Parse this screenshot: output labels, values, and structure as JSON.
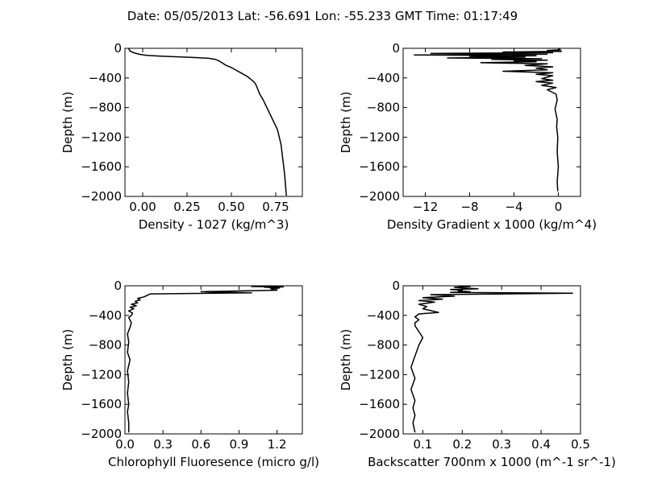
{
  "title": "Date: 05/05/2013  Lat:  -56.691 Lon:  -55.233  GMT Time: 01:17:49",
  "chart_data": [
    {
      "type": "line",
      "xlabel": "Density - 1027 (kg/m^3)",
      "ylabel": "Depth (m)",
      "xlim": [
        -0.1,
        0.9
      ],
      "ylim": [
        -2000,
        0
      ],
      "xticks": [
        0.0,
        0.25,
        0.5,
        0.75
      ],
      "xtick_labels": [
        "0.00",
        "0.25",
        "0.50",
        "0.75"
      ],
      "yticks": [
        0,
        -400,
        -800,
        -1200,
        -1600,
        -2000
      ],
      "ytick_labels": [
        "0",
        "−400",
        "−800",
        "−1200",
        "−1600",
        "−2000"
      ],
      "grid": false,
      "series": [
        {
          "x": [
            -0.08,
            -0.07,
            -0.05,
            -0.02,
            0.02,
            0.1,
            0.2,
            0.3,
            0.37,
            0.41,
            0.43,
            0.45,
            0.47,
            0.5,
            0.53,
            0.56,
            0.59,
            0.61,
            0.63,
            0.64,
            0.65,
            0.66,
            0.68,
            0.7,
            0.72,
            0.74,
            0.76,
            0.77,
            0.78,
            0.785,
            0.79,
            0.8,
            0.81
          ],
          "y": [
            0,
            -40,
            -60,
            -80,
            -95,
            -105,
            -115,
            -125,
            -135,
            -150,
            -170,
            -200,
            -230,
            -260,
            -300,
            -340,
            -380,
            -420,
            -460,
            -500,
            -560,
            -620,
            -700,
            -800,
            -900,
            -1000,
            -1100,
            -1200,
            -1300,
            -1400,
            -1500,
            -1700,
            -1990
          ]
        }
      ]
    },
    {
      "type": "line",
      "xlabel": "Density Gradient x 1000 (kg/m^4)",
      "ylabel": "Depth (m)",
      "xlim": [
        -14,
        2
      ],
      "ylim": [
        -2000,
        0
      ],
      "xticks": [
        -12,
        -8,
        -4,
        0
      ],
      "xtick_labels": [
        "−12",
        "−8",
        "−4",
        "0"
      ],
      "yticks": [
        0,
        -400,
        -800,
        -1200,
        -1600,
        -2000
      ],
      "ytick_labels": [
        "0",
        "−400",
        "−800",
        "−1200",
        "−1600",
        "−2000"
      ],
      "grid": false,
      "series": [
        {
          "x": [
            0,
            0.2,
            -1,
            0.3,
            -5,
            -0.5,
            -11.5,
            -1,
            -13,
            -2,
            -8,
            -3,
            -10,
            -1.5,
            -6,
            -1,
            -4,
            -2,
            -7,
            -1,
            -3,
            -0.5,
            -2,
            -1,
            -5,
            -0.5,
            -2,
            -0.5,
            -1,
            -1.5,
            -0.5,
            -2,
            -0.5,
            -1.5,
            -0.2,
            -1,
            -0.2,
            -0.1,
            -0.3,
            -0.1,
            -0.15,
            -0.05,
            -0.1,
            0,
            -0.1,
            -0.05
          ],
          "y": [
            -10,
            -20,
            -30,
            -40,
            -50,
            -60,
            -70,
            -80,
            -90,
            -100,
            -110,
            -120,
            -130,
            -140,
            -150,
            -160,
            -170,
            -180,
            -195,
            -210,
            -230,
            -250,
            -270,
            -290,
            -310,
            -330,
            -350,
            -370,
            -390,
            -410,
            -430,
            -450,
            -470,
            -500,
            -530,
            -560,
            -620,
            -700,
            -820,
            -960,
            -1060,
            -1200,
            -1400,
            -1600,
            -1800,
            -1930
          ]
        }
      ]
    },
    {
      "type": "line",
      "xlabel": "Chlorophyll Fluoresence (micro g/l)",
      "ylabel": "Depth (m)",
      "xlim": [
        0,
        1.4
      ],
      "ylim": [
        -2000,
        0
      ],
      "xticks": [
        0.0,
        0.3,
        0.6,
        0.9,
        1.2
      ],
      "xtick_labels": [
        "0.0",
        "0.3",
        "0.6",
        "0.9",
        "1.2"
      ],
      "yticks": [
        0,
        -400,
        -800,
        -1200,
        -1600,
        -2000
      ],
      "ytick_labels": [
        "0",
        "−400",
        "−800",
        "−1200",
        "−1600",
        "−2000"
      ],
      "grid": false,
      "series": [
        {
          "x": [
            1.05,
            1.2,
            1.0,
            1.25,
            1.1,
            1.22,
            1.15,
            1.2,
            0.6,
            1.0,
            0.2,
            0.15,
            0.1,
            0.12,
            0.08,
            0.1,
            0.05,
            0.09,
            0.04,
            0.07,
            0.03,
            0.06,
            0.05,
            0.03,
            0.05,
            0.04,
            0.02,
            0.03,
            0.02,
            0.04,
            0.02,
            0.03,
            0.02,
            0.03,
            0.02,
            0.03,
            0.03
          ],
          "y": [
            0,
            -5,
            -10,
            -15,
            -20,
            -30,
            -40,
            -60,
            -80,
            -95,
            -110,
            -150,
            -170,
            -190,
            -210,
            -230,
            -250,
            -270,
            -290,
            -310,
            -340,
            -370,
            -400,
            -430,
            -500,
            -560,
            -650,
            -760,
            -900,
            -1000,
            -1150,
            -1300,
            -1450,
            -1600,
            -1700,
            -1850,
            -1980
          ]
        }
      ]
    },
    {
      "type": "line",
      "xlabel": "Backscatter 700nm x 1000 (m^-1 sr^-1)",
      "ylabel": "Depth (m)",
      "xlim": [
        0.05,
        0.5
      ],
      "ylim": [
        -2000,
        0
      ],
      "xticks": [
        0.1,
        0.2,
        0.3,
        0.4,
        0.5
      ],
      "xtick_labels": [
        "0.1",
        "0.2",
        "0.3",
        "0.4",
        "0.5"
      ],
      "yticks": [
        0,
        -400,
        -800,
        -1200,
        -1600,
        -2000
      ],
      "ytick_labels": [
        "0",
        "−400",
        "−800",
        "−1200",
        "−1600",
        "−2000"
      ],
      "grid": false,
      "series": [
        {
          "x": [
            0.19,
            0.22,
            0.18,
            0.2,
            0.24,
            0.17,
            0.2,
            0.19,
            0.22,
            0.17,
            0.48,
            0.12,
            0.18,
            0.1,
            0.15,
            0.09,
            0.13,
            0.09,
            0.11,
            0.1,
            0.14,
            0.09,
            0.08,
            0.09,
            0.08,
            0.08,
            0.09,
            0.1,
            0.09,
            0.08,
            0.07,
            0.08,
            0.07,
            0.08,
            0.075,
            0.08,
            0.075,
            0.08
          ],
          "y": [
            0,
            -10,
            -20,
            -30,
            -40,
            -50,
            -60,
            -70,
            -80,
            -90,
            -100,
            -120,
            -140,
            -160,
            -180,
            -200,
            -220,
            -250,
            -280,
            -310,
            -360,
            -380,
            -420,
            -460,
            -500,
            -540,
            -620,
            -700,
            -800,
            -950,
            -1100,
            -1250,
            -1400,
            -1550,
            -1650,
            -1750,
            -1850,
            -1980
          ]
        }
      ]
    }
  ]
}
